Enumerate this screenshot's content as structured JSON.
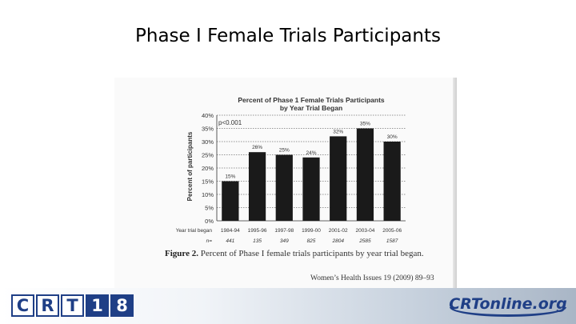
{
  "slide": {
    "title": "Phase I Female Trials Participants"
  },
  "chart_data": {
    "type": "bar",
    "title": "Percent of Phase 1 Female Trials Participants",
    "subtitle": "by Year Trial Began",
    "ylabel": "Percent of participants",
    "ylim": [
      0,
      40
    ],
    "yticks": [
      "0%",
      "5%",
      "10%",
      "15%",
      "20%",
      "25%",
      "30%",
      "35%",
      "40%"
    ],
    "categories": [
      "1984-94",
      "1995-96",
      "1997-98",
      "1999-00",
      "2001-02",
      "2003-04",
      "2005-06"
    ],
    "values": [
      15,
      26,
      25,
      24,
      32,
      35,
      30
    ],
    "data_labels": [
      "15%",
      "26%",
      "25%",
      "24%",
      "32%",
      "35%",
      "30%"
    ],
    "annotation": "p<0.001",
    "x_row_label": "Year trial began",
    "n_row_label": "n=",
    "n_values": [
      "441",
      "135",
      "349",
      "825",
      "2804",
      "2585",
      "1587"
    ],
    "grid": true,
    "bar_color": "#1a1a1a"
  },
  "figure": {
    "label": "Figure 2.",
    "caption": "Percent of Phase I female trials participants by year trial began.",
    "source": "Women’s Health Issues 19 (2009) 89–93"
  },
  "footer": {
    "logo_left": [
      "C",
      "R",
      "T",
      "1",
      "8"
    ],
    "logo_right": "CRTonline.org"
  }
}
